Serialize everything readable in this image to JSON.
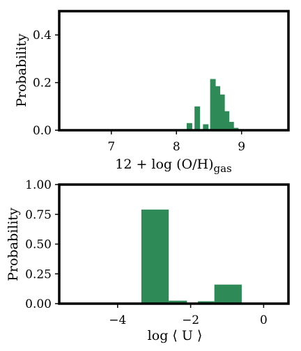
{
  "chart_data": [
    {
      "type": "bar",
      "xlabel": "12 + log (O/H)",
      "xlabel_subscript": "gas",
      "ylabel": "Probability",
      "xlim": [
        6.2,
        9.72
      ],
      "ylim": [
        0,
        0.5
      ],
      "xticks": [
        "7",
        "8",
        "9"
      ],
      "xtick_values": [
        7,
        8,
        9
      ],
      "yticks": [
        "0.0",
        "0.2",
        "0.4"
      ],
      "ytick_values": [
        0.0,
        0.2,
        0.4
      ],
      "bar_width": 0.085,
      "bar_color": "#2e8b57",
      "bars": [
        {
          "x": 8.2,
          "value": 0.03
        },
        {
          "x": 8.32,
          "value": 0.1
        },
        {
          "x": 8.45,
          "value": 0.025
        },
        {
          "x": 8.56,
          "value": 0.215
        },
        {
          "x": 8.63,
          "value": 0.185
        },
        {
          "x": 8.7,
          "value": 0.15
        },
        {
          "x": 8.77,
          "value": 0.08
        },
        {
          "x": 8.84,
          "value": 0.035
        },
        {
          "x": 8.91,
          "value": 0.01
        },
        {
          "x": 8.98,
          "value": 0.003
        }
      ]
    },
    {
      "type": "bar",
      "xlabel": "log ⟨ U ⟩",
      "ylabel": "Probability",
      "xlim": [
        -5.6,
        0.68
      ],
      "ylim": [
        0,
        1.0
      ],
      "xticks": [
        "−4",
        "−2",
        "0"
      ],
      "xtick_values": [
        -4,
        -2,
        0
      ],
      "yticks": [
        "0.00",
        "0.25",
        "0.50",
        "0.75",
        "1.00"
      ],
      "ytick_values": [
        0.0,
        0.25,
        0.5,
        0.75,
        1.0
      ],
      "bar_color": "#2e8b57",
      "bars": [
        {
          "x0": -3.35,
          "x1": -2.6,
          "value": 0.79
        },
        {
          "x0": -2.6,
          "x1": -2.1,
          "value": 0.025
        },
        {
          "x0": -1.8,
          "x1": -1.35,
          "value": 0.02
        },
        {
          "x0": -1.35,
          "x1": -0.6,
          "value": 0.16
        }
      ]
    }
  ]
}
